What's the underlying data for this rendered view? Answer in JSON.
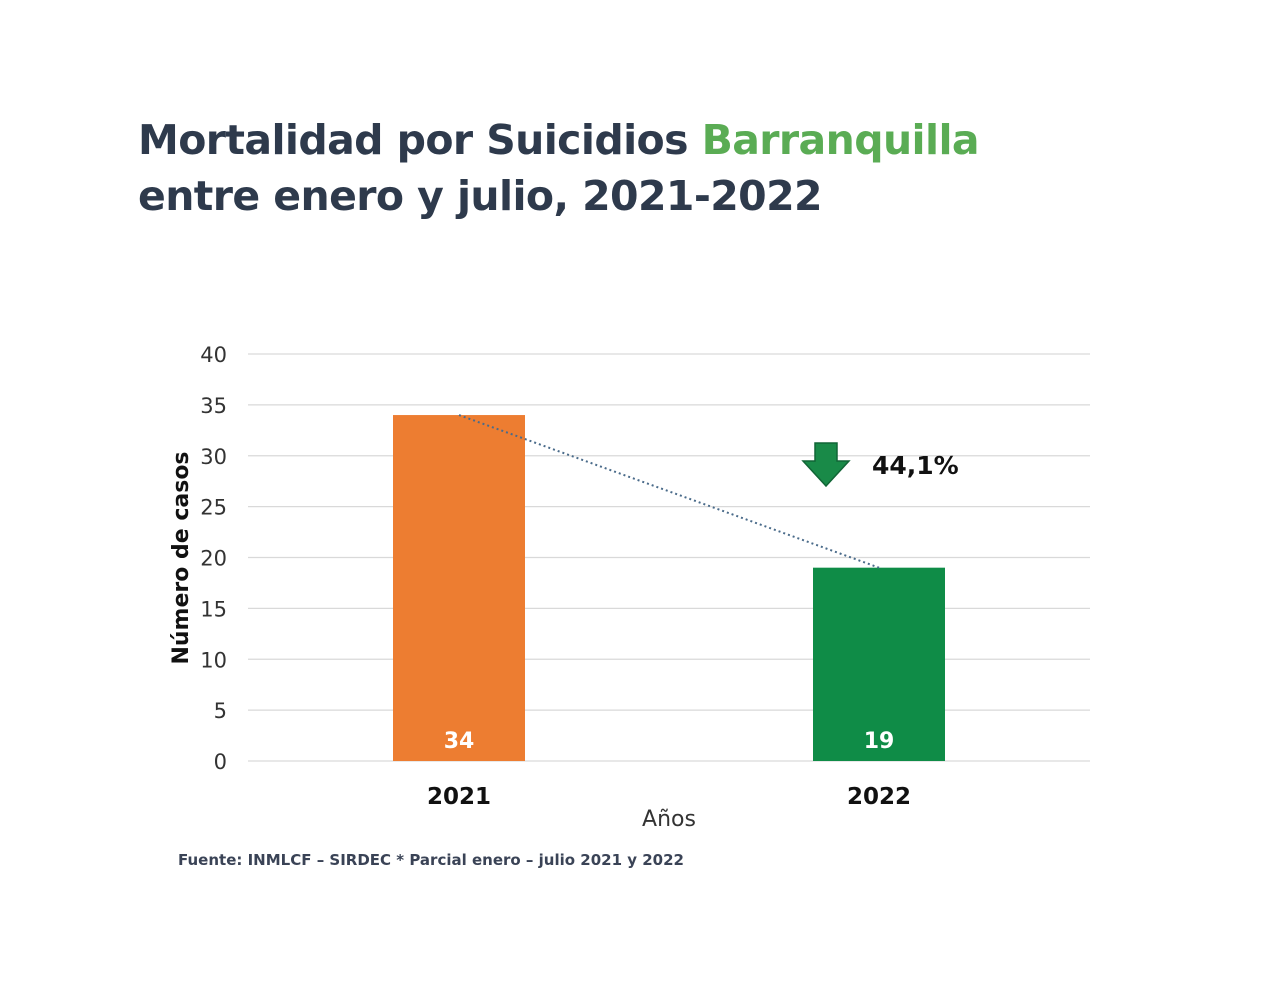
{
  "title": {
    "part1": "Mortalidad por Suicidios ",
    "accent": "Barranquilla",
    "line2": "entre enero y julio, 2021-2022"
  },
  "source": "Fuente: INMLCF – SIRDEC * Parcial enero – julio 2021 y 2022",
  "colors": {
    "title": "#2e3a4c",
    "accent": "#5aac54",
    "bar_2021": "#ed7d31",
    "bar_2022": "#0f8c47",
    "arrow": "#198a48",
    "trendline": "#4a6b8a",
    "grid": "#d9d9d9"
  },
  "chart_data": {
    "type": "bar",
    "categories": [
      "2021",
      "2022"
    ],
    "values": [
      34,
      19
    ],
    "data_labels": [
      "34",
      "19"
    ],
    "xlabel": "Años",
    "ylabel": "Número de casos",
    "ylim": [
      0,
      40
    ],
    "yticks": [
      0,
      5,
      10,
      15,
      20,
      25,
      30,
      35,
      40
    ],
    "grid": true,
    "trendline": "dotted line between bar tops",
    "annotation": {
      "icon": "arrow-down-icon",
      "text": "44,1%"
    }
  }
}
